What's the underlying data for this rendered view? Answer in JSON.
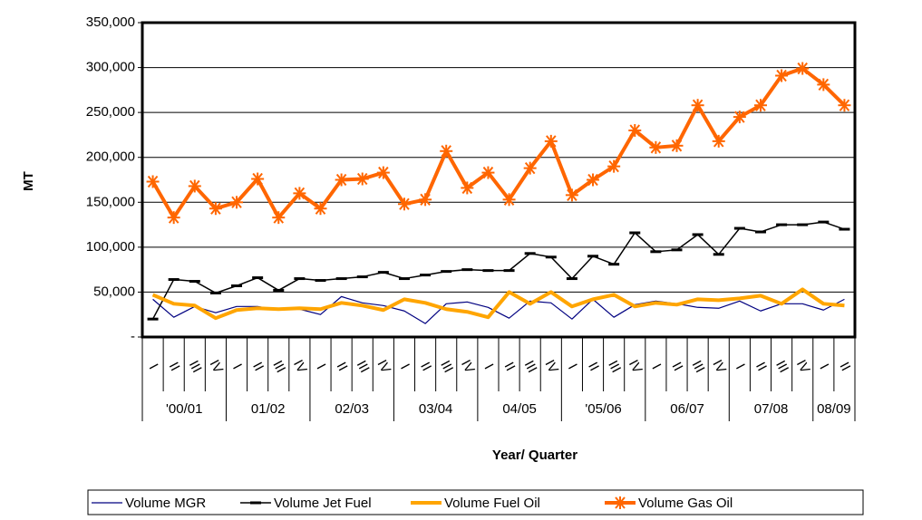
{
  "chart_data": {
    "type": "line",
    "x_label": "Year/ Quarter",
    "y_label": "MT",
    "year_groups": [
      {
        "label": "'00/01",
        "quarters": [
          "I",
          "II",
          "III",
          "IV"
        ]
      },
      {
        "label": "01/02",
        "quarters": [
          "I",
          "II",
          "III",
          "IV"
        ]
      },
      {
        "label": "02/03",
        "quarters": [
          "I",
          "II",
          "III",
          "IV"
        ]
      },
      {
        "label": "03/04",
        "quarters": [
          "I",
          "II",
          "III",
          "IV"
        ]
      },
      {
        "label": "04/05",
        "quarters": [
          "I",
          "II",
          "III",
          "IV"
        ]
      },
      {
        "label": "'05/06",
        "quarters": [
          "I",
          "II",
          "III",
          "IV"
        ]
      },
      {
        "label": "06/07",
        "quarters": [
          "I",
          "II",
          "III",
          "IV"
        ]
      },
      {
        "label": "07/08",
        "quarters": [
          "I",
          "II",
          "III",
          "IV"
        ]
      },
      {
        "label": "08/09",
        "quarters": [
          "I",
          "II"
        ]
      }
    ],
    "ylim": [
      0,
      350000
    ],
    "yticks": [
      {
        "value": 0,
        "label": "-"
      },
      {
        "value": 50000,
        "label": "50,000"
      },
      {
        "value": 100000,
        "label": "100,000"
      },
      {
        "value": 150000,
        "label": "150,000"
      },
      {
        "value": 200000,
        "label": "200,000"
      },
      {
        "value": 250000,
        "label": "250,000"
      },
      {
        "value": 300000,
        "label": "300,000"
      },
      {
        "value": 350000,
        "label": "350,000"
      }
    ],
    "grid": true,
    "legend": "bottom",
    "series": [
      {
        "name": "Volume MGR",
        "color": "#000080",
        "marker": "none",
        "width": 1.2,
        "values": [
          42000,
          22000,
          34000,
          27000,
          34000,
          34000,
          30000,
          31000,
          25000,
          45000,
          38000,
          35000,
          29000,
          15000,
          37000,
          39000,
          33000,
          21000,
          40000,
          38000,
          20000,
          42000,
          22000,
          36000,
          40000,
          37000,
          33000,
          32000,
          40000,
          29000,
          37000,
          37000,
          30000,
          42000
        ]
      },
      {
        "name": "Volume Jet Fuel",
        "color": "#000000",
        "marker": "dash",
        "width": 1.5,
        "values": [
          20000,
          64000,
          62000,
          49000,
          57000,
          66000,
          52000,
          65000,
          63000,
          65000,
          67000,
          72000,
          65000,
          69000,
          73000,
          75000,
          74000,
          74000,
          93000,
          89000,
          65000,
          90000,
          81000,
          116000,
          95000,
          97000,
          114000,
          92000,
          121000,
          117000,
          125000,
          125000,
          128000,
          120000
        ]
      },
      {
        "name": "Volume Fuel Oil",
        "color": "#FFA500",
        "marker": "none",
        "width": 4,
        "values": [
          47000,
          37000,
          35000,
          21000,
          30000,
          32000,
          31000,
          32000,
          31000,
          38000,
          35000,
          30000,
          42000,
          38000,
          31000,
          28000,
          22000,
          50000,
          37000,
          50000,
          34000,
          42000,
          47000,
          34000,
          38000,
          36000,
          42000,
          41000,
          43000,
          46000,
          37000,
          53000,
          37000,
          35000
        ]
      },
      {
        "name": "Volume Gas Oil",
        "color": "#FF6600",
        "marker": "star",
        "width": 4,
        "values": [
          173000,
          133000,
          168000,
          143000,
          150000,
          176000,
          133000,
          160000,
          143000,
          175000,
          176000,
          183000,
          148000,
          153000,
          207000,
          166000,
          183000,
          153000,
          188000,
          218000,
          158000,
          175000,
          190000,
          230000,
          211000,
          213000,
          258000,
          218000,
          245000,
          258000,
          291000,
          299000,
          281000,
          258000
        ]
      }
    ]
  }
}
